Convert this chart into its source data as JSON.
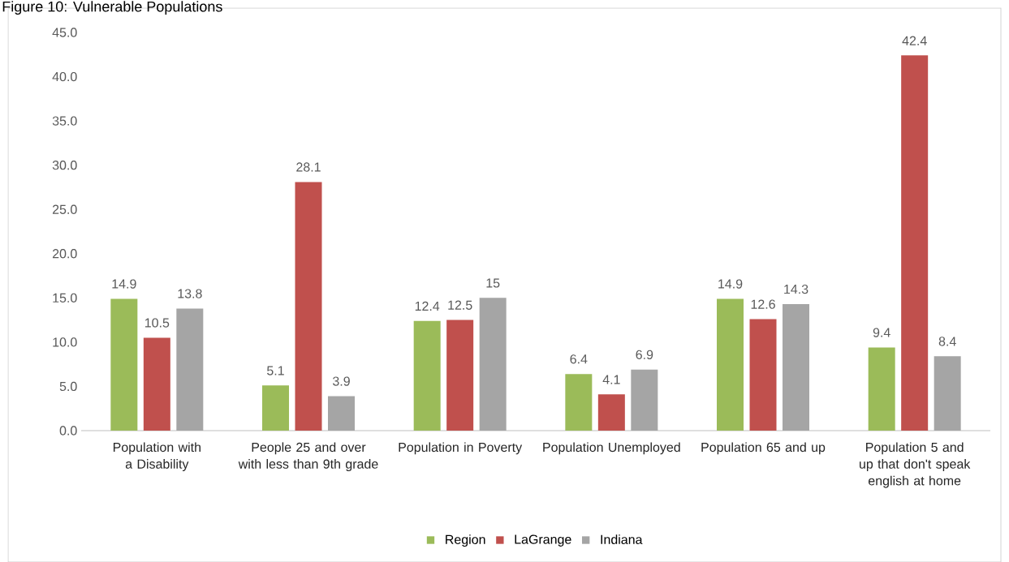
{
  "chart_data": {
    "type": "bar",
    "title": "Figure 10: Vulnerable Populations",
    "categories": [
      "Population with a Disability",
      "People 25 and over with less than 9th grade",
      "Population in Poverty",
      "Population Unemployed",
      "Population 65 and up",
      "Population 5 and up that don't speak english at home"
    ],
    "series": [
      {
        "name": "Region",
        "color": "#9bbb59",
        "values": [
          14.9,
          5.1,
          12.4,
          6.4,
          14.9,
          9.4
        ]
      },
      {
        "name": "LaGrange",
        "color": "#c0504d",
        "values": [
          10.5,
          28.1,
          12.5,
          4.1,
          12.6,
          42.4
        ]
      },
      {
        "name": "Indiana",
        "color": "#a5a5a5",
        "values": [
          13.8,
          3.9,
          15,
          6.9,
          14.3,
          8.4
        ]
      }
    ],
    "ylim": [
      0,
      45
    ],
    "yticks": [
      {
        "value": 0,
        "label": "0.0"
      },
      {
        "value": 5,
        "label": "5.0"
      },
      {
        "value": 10,
        "label": "10.0"
      },
      {
        "value": 15,
        "label": "15.0"
      },
      {
        "value": 20,
        "label": "20.0"
      },
      {
        "value": 25,
        "label": "25.0"
      },
      {
        "value": 30,
        "label": "30.0"
      },
      {
        "value": 35,
        "label": "35.0"
      },
      {
        "value": 40,
        "label": "40.0"
      },
      {
        "value": 45,
        "label": "45.0"
      }
    ],
    "data_labels": true,
    "grid": false,
    "legend": "bottom"
  }
}
